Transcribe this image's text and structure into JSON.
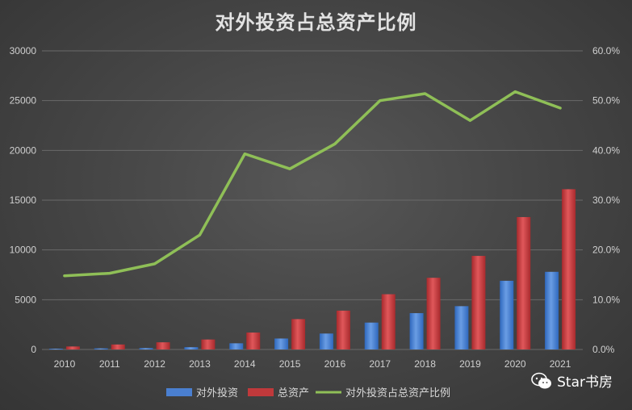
{
  "title": "对外投资占总资产比例",
  "watermark": "Star书房",
  "colors": {
    "bar_series_1": "#4a7fd0",
    "bar_series_2": "#c0393b",
    "line_series": "#8fbf57",
    "grid": "#6a6a6a",
    "text": "#d0d0d0"
  },
  "chart_data": {
    "type": "bar",
    "title": "对外投资占总资产比例",
    "categories": [
      "2010",
      "2011",
      "2012",
      "2013",
      "2014",
      "2015",
      "2016",
      "2017",
      "2018",
      "2019",
      "2020",
      "2021"
    ],
    "series": [
      {
        "name": "对外投资",
        "type": "bar",
        "axis": "left",
        "values": [
          80,
          110,
          140,
          230,
          620,
          1100,
          1600,
          2700,
          3650,
          4350,
          6900,
          7800
        ]
      },
      {
        "name": "总资产",
        "type": "bar",
        "axis": "left",
        "values": [
          300,
          500,
          720,
          1000,
          1700,
          3050,
          3900,
          5550,
          7200,
          9400,
          13300,
          16100
        ]
      },
      {
        "name": "对外投资占总资产比例",
        "type": "line",
        "axis": "right",
        "values": [
          0.148,
          0.153,
          0.172,
          0.23,
          0.393,
          0.363,
          0.413,
          0.5,
          0.514,
          0.46,
          0.518,
          0.485
        ]
      }
    ],
    "y_left": {
      "min": 0,
      "max": 30000,
      "ticks": [
        "0",
        "5000",
        "10000",
        "15000",
        "20000",
        "25000",
        "30000"
      ]
    },
    "y_right": {
      "min": 0,
      "max": 0.6,
      "ticks": [
        "0.0%",
        "10.0%",
        "20.0%",
        "30.0%",
        "40.0%",
        "50.0%",
        "60.0%"
      ]
    },
    "grid": true,
    "legend_position": "bottom"
  }
}
